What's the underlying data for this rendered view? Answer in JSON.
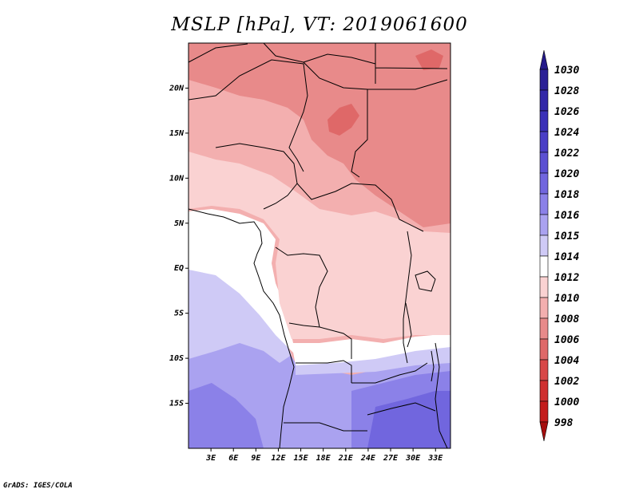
{
  "title": "MSLP [hPa], VT: 2019061600",
  "credit": "GrADS: IGES/COLA",
  "map": {
    "lat_range": [
      -20,
      25
    ],
    "lon_range": [
      0,
      35
    ],
    "lat_ticks": [
      {
        "value": 20,
        "label": "20N"
      },
      {
        "value": 15,
        "label": "15N"
      },
      {
        "value": 10,
        "label": "10N"
      },
      {
        "value": 5,
        "label": "5N"
      },
      {
        "value": 0,
        "label": "EQ"
      },
      {
        "value": -5,
        "label": "5S"
      },
      {
        "value": -10,
        "label": "10S"
      },
      {
        "value": -15,
        "label": "15S"
      }
    ],
    "lon_ticks": [
      {
        "value": 3,
        "label": "3E"
      },
      {
        "value": 6,
        "label": "6E"
      },
      {
        "value": 9,
        "label": "9E"
      },
      {
        "value": 12,
        "label": "12E"
      },
      {
        "value": 15,
        "label": "15E"
      },
      {
        "value": 18,
        "label": "18E"
      },
      {
        "value": 21,
        "label": "21E"
      },
      {
        "value": 24,
        "label": "24E"
      },
      {
        "value": 27,
        "label": "27E"
      },
      {
        "value": 30,
        "label": "30E"
      },
      {
        "value": 33,
        "label": "33E"
      }
    ]
  },
  "colorbar": {
    "levels": [
      {
        "label": "1030",
        "color": "#2a1f96"
      },
      {
        "label": "1028",
        "color": "#3227a8"
      },
      {
        "label": "1026",
        "color": "#3a30b8"
      },
      {
        "label": "1024",
        "color": "#4a3ec6"
      },
      {
        "label": "1022",
        "color": "#5b50d2"
      },
      {
        "label": "1020",
        "color": "#7166de"
      },
      {
        "label": "1018",
        "color": "#8b81e8"
      },
      {
        "label": "1016",
        "color": "#aaa2f0"
      },
      {
        "label": "1015",
        "color": "#cfcaf6"
      },
      {
        "label": "1014",
        "color": "#ffffff"
      },
      {
        "label": "1012",
        "color": "#fad2d2"
      },
      {
        "label": "1010",
        "color": "#f3afaf"
      },
      {
        "label": "1008",
        "color": "#e88a8a"
      },
      {
        "label": "1006",
        "color": "#df6868"
      },
      {
        "label": "1004",
        "color": "#d84848"
      },
      {
        "label": "1002",
        "color": "#cf2f2f"
      },
      {
        "label": "1000",
        "color": "#c31c1c"
      },
      {
        "label": "998",
        "color": "#b11010"
      }
    ],
    "top_arrow_color": "#241a8a",
    "bottom_arrow_color": "#a50e0e"
  }
}
